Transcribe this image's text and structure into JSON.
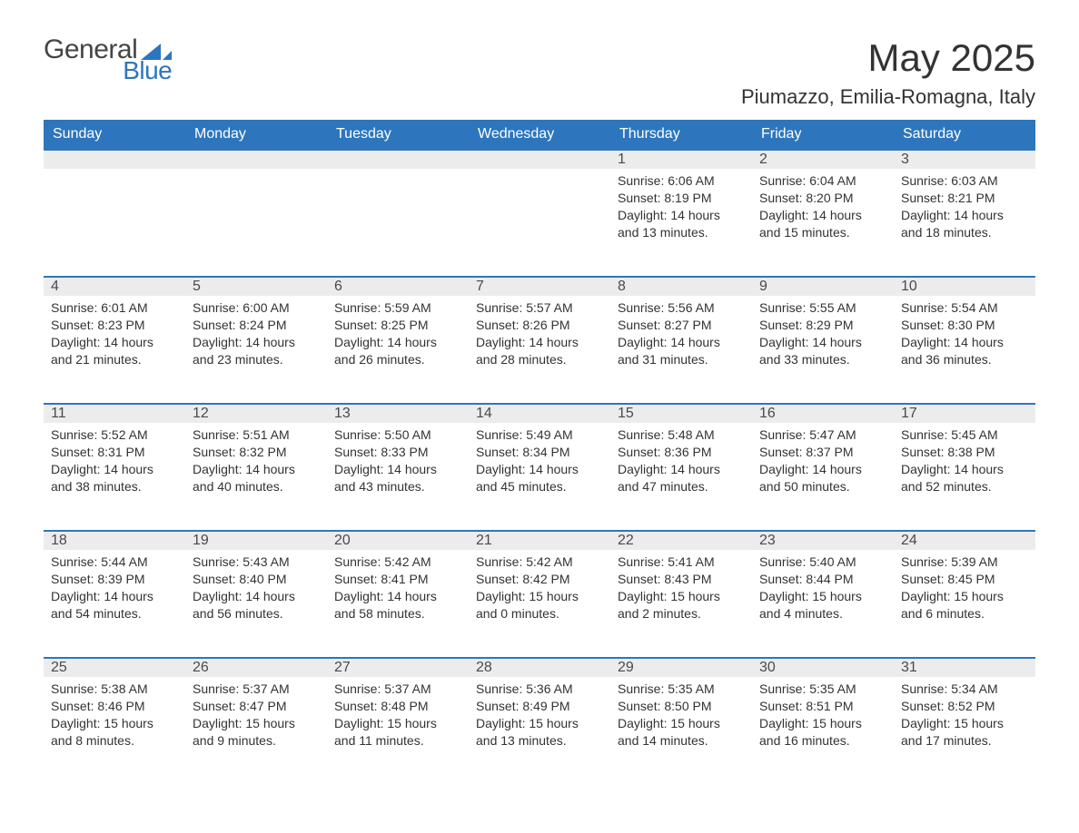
{
  "brand": {
    "part1": "General",
    "part2": "Blue",
    "part1_color": "#454545",
    "part2_color": "#2d76bd"
  },
  "title": "May 2025",
  "location": "Piumazzo, Emilia-Romagna, Italy",
  "colors": {
    "header_bg": "#2d76bd",
    "header_text": "#ffffff",
    "daynum_bg": "#ececec",
    "daynum_border": "#2d76bd",
    "text": "#333333",
    "background": "#ffffff"
  },
  "fonts": {
    "title_size": 42,
    "location_size": 22,
    "dayhead_size": 16,
    "body_size": 14
  },
  "weekdays": [
    "Sunday",
    "Monday",
    "Tuesday",
    "Wednesday",
    "Thursday",
    "Friday",
    "Saturday"
  ],
  "grid": {
    "columns": 7,
    "rows": 5,
    "first_weekday_index": 4
  },
  "days": [
    {
      "n": "1",
      "sunrise": "Sunrise: 6:06 AM",
      "sunset": "Sunset: 8:19 PM",
      "daylight": "Daylight: 14 hours and 13 minutes."
    },
    {
      "n": "2",
      "sunrise": "Sunrise: 6:04 AM",
      "sunset": "Sunset: 8:20 PM",
      "daylight": "Daylight: 14 hours and 15 minutes."
    },
    {
      "n": "3",
      "sunrise": "Sunrise: 6:03 AM",
      "sunset": "Sunset: 8:21 PM",
      "daylight": "Daylight: 14 hours and 18 minutes."
    },
    {
      "n": "4",
      "sunrise": "Sunrise: 6:01 AM",
      "sunset": "Sunset: 8:23 PM",
      "daylight": "Daylight: 14 hours and 21 minutes."
    },
    {
      "n": "5",
      "sunrise": "Sunrise: 6:00 AM",
      "sunset": "Sunset: 8:24 PM",
      "daylight": "Daylight: 14 hours and 23 minutes."
    },
    {
      "n": "6",
      "sunrise": "Sunrise: 5:59 AM",
      "sunset": "Sunset: 8:25 PM",
      "daylight": "Daylight: 14 hours and 26 minutes."
    },
    {
      "n": "7",
      "sunrise": "Sunrise: 5:57 AM",
      "sunset": "Sunset: 8:26 PM",
      "daylight": "Daylight: 14 hours and 28 minutes."
    },
    {
      "n": "8",
      "sunrise": "Sunrise: 5:56 AM",
      "sunset": "Sunset: 8:27 PM",
      "daylight": "Daylight: 14 hours and 31 minutes."
    },
    {
      "n": "9",
      "sunrise": "Sunrise: 5:55 AM",
      "sunset": "Sunset: 8:29 PM",
      "daylight": "Daylight: 14 hours and 33 minutes."
    },
    {
      "n": "10",
      "sunrise": "Sunrise: 5:54 AM",
      "sunset": "Sunset: 8:30 PM",
      "daylight": "Daylight: 14 hours and 36 minutes."
    },
    {
      "n": "11",
      "sunrise": "Sunrise: 5:52 AM",
      "sunset": "Sunset: 8:31 PM",
      "daylight": "Daylight: 14 hours and 38 minutes."
    },
    {
      "n": "12",
      "sunrise": "Sunrise: 5:51 AM",
      "sunset": "Sunset: 8:32 PM",
      "daylight": "Daylight: 14 hours and 40 minutes."
    },
    {
      "n": "13",
      "sunrise": "Sunrise: 5:50 AM",
      "sunset": "Sunset: 8:33 PM",
      "daylight": "Daylight: 14 hours and 43 minutes."
    },
    {
      "n": "14",
      "sunrise": "Sunrise: 5:49 AM",
      "sunset": "Sunset: 8:34 PM",
      "daylight": "Daylight: 14 hours and 45 minutes."
    },
    {
      "n": "15",
      "sunrise": "Sunrise: 5:48 AM",
      "sunset": "Sunset: 8:36 PM",
      "daylight": "Daylight: 14 hours and 47 minutes."
    },
    {
      "n": "16",
      "sunrise": "Sunrise: 5:47 AM",
      "sunset": "Sunset: 8:37 PM",
      "daylight": "Daylight: 14 hours and 50 minutes."
    },
    {
      "n": "17",
      "sunrise": "Sunrise: 5:45 AM",
      "sunset": "Sunset: 8:38 PM",
      "daylight": "Daylight: 14 hours and 52 minutes."
    },
    {
      "n": "18",
      "sunrise": "Sunrise: 5:44 AM",
      "sunset": "Sunset: 8:39 PM",
      "daylight": "Daylight: 14 hours and 54 minutes."
    },
    {
      "n": "19",
      "sunrise": "Sunrise: 5:43 AM",
      "sunset": "Sunset: 8:40 PM",
      "daylight": "Daylight: 14 hours and 56 minutes."
    },
    {
      "n": "20",
      "sunrise": "Sunrise: 5:42 AM",
      "sunset": "Sunset: 8:41 PM",
      "daylight": "Daylight: 14 hours and 58 minutes."
    },
    {
      "n": "21",
      "sunrise": "Sunrise: 5:42 AM",
      "sunset": "Sunset: 8:42 PM",
      "daylight": "Daylight: 15 hours and 0 minutes."
    },
    {
      "n": "22",
      "sunrise": "Sunrise: 5:41 AM",
      "sunset": "Sunset: 8:43 PM",
      "daylight": "Daylight: 15 hours and 2 minutes."
    },
    {
      "n": "23",
      "sunrise": "Sunrise: 5:40 AM",
      "sunset": "Sunset: 8:44 PM",
      "daylight": "Daylight: 15 hours and 4 minutes."
    },
    {
      "n": "24",
      "sunrise": "Sunrise: 5:39 AM",
      "sunset": "Sunset: 8:45 PM",
      "daylight": "Daylight: 15 hours and 6 minutes."
    },
    {
      "n": "25",
      "sunrise": "Sunrise: 5:38 AM",
      "sunset": "Sunset: 8:46 PM",
      "daylight": "Daylight: 15 hours and 8 minutes."
    },
    {
      "n": "26",
      "sunrise": "Sunrise: 5:37 AM",
      "sunset": "Sunset: 8:47 PM",
      "daylight": "Daylight: 15 hours and 9 minutes."
    },
    {
      "n": "27",
      "sunrise": "Sunrise: 5:37 AM",
      "sunset": "Sunset: 8:48 PM",
      "daylight": "Daylight: 15 hours and 11 minutes."
    },
    {
      "n": "28",
      "sunrise": "Sunrise: 5:36 AM",
      "sunset": "Sunset: 8:49 PM",
      "daylight": "Daylight: 15 hours and 13 minutes."
    },
    {
      "n": "29",
      "sunrise": "Sunrise: 5:35 AM",
      "sunset": "Sunset: 8:50 PM",
      "daylight": "Daylight: 15 hours and 14 minutes."
    },
    {
      "n": "30",
      "sunrise": "Sunrise: 5:35 AM",
      "sunset": "Sunset: 8:51 PM",
      "daylight": "Daylight: 15 hours and 16 minutes."
    },
    {
      "n": "31",
      "sunrise": "Sunrise: 5:34 AM",
      "sunset": "Sunset: 8:52 PM",
      "daylight": "Daylight: 15 hours and 17 minutes."
    }
  ]
}
